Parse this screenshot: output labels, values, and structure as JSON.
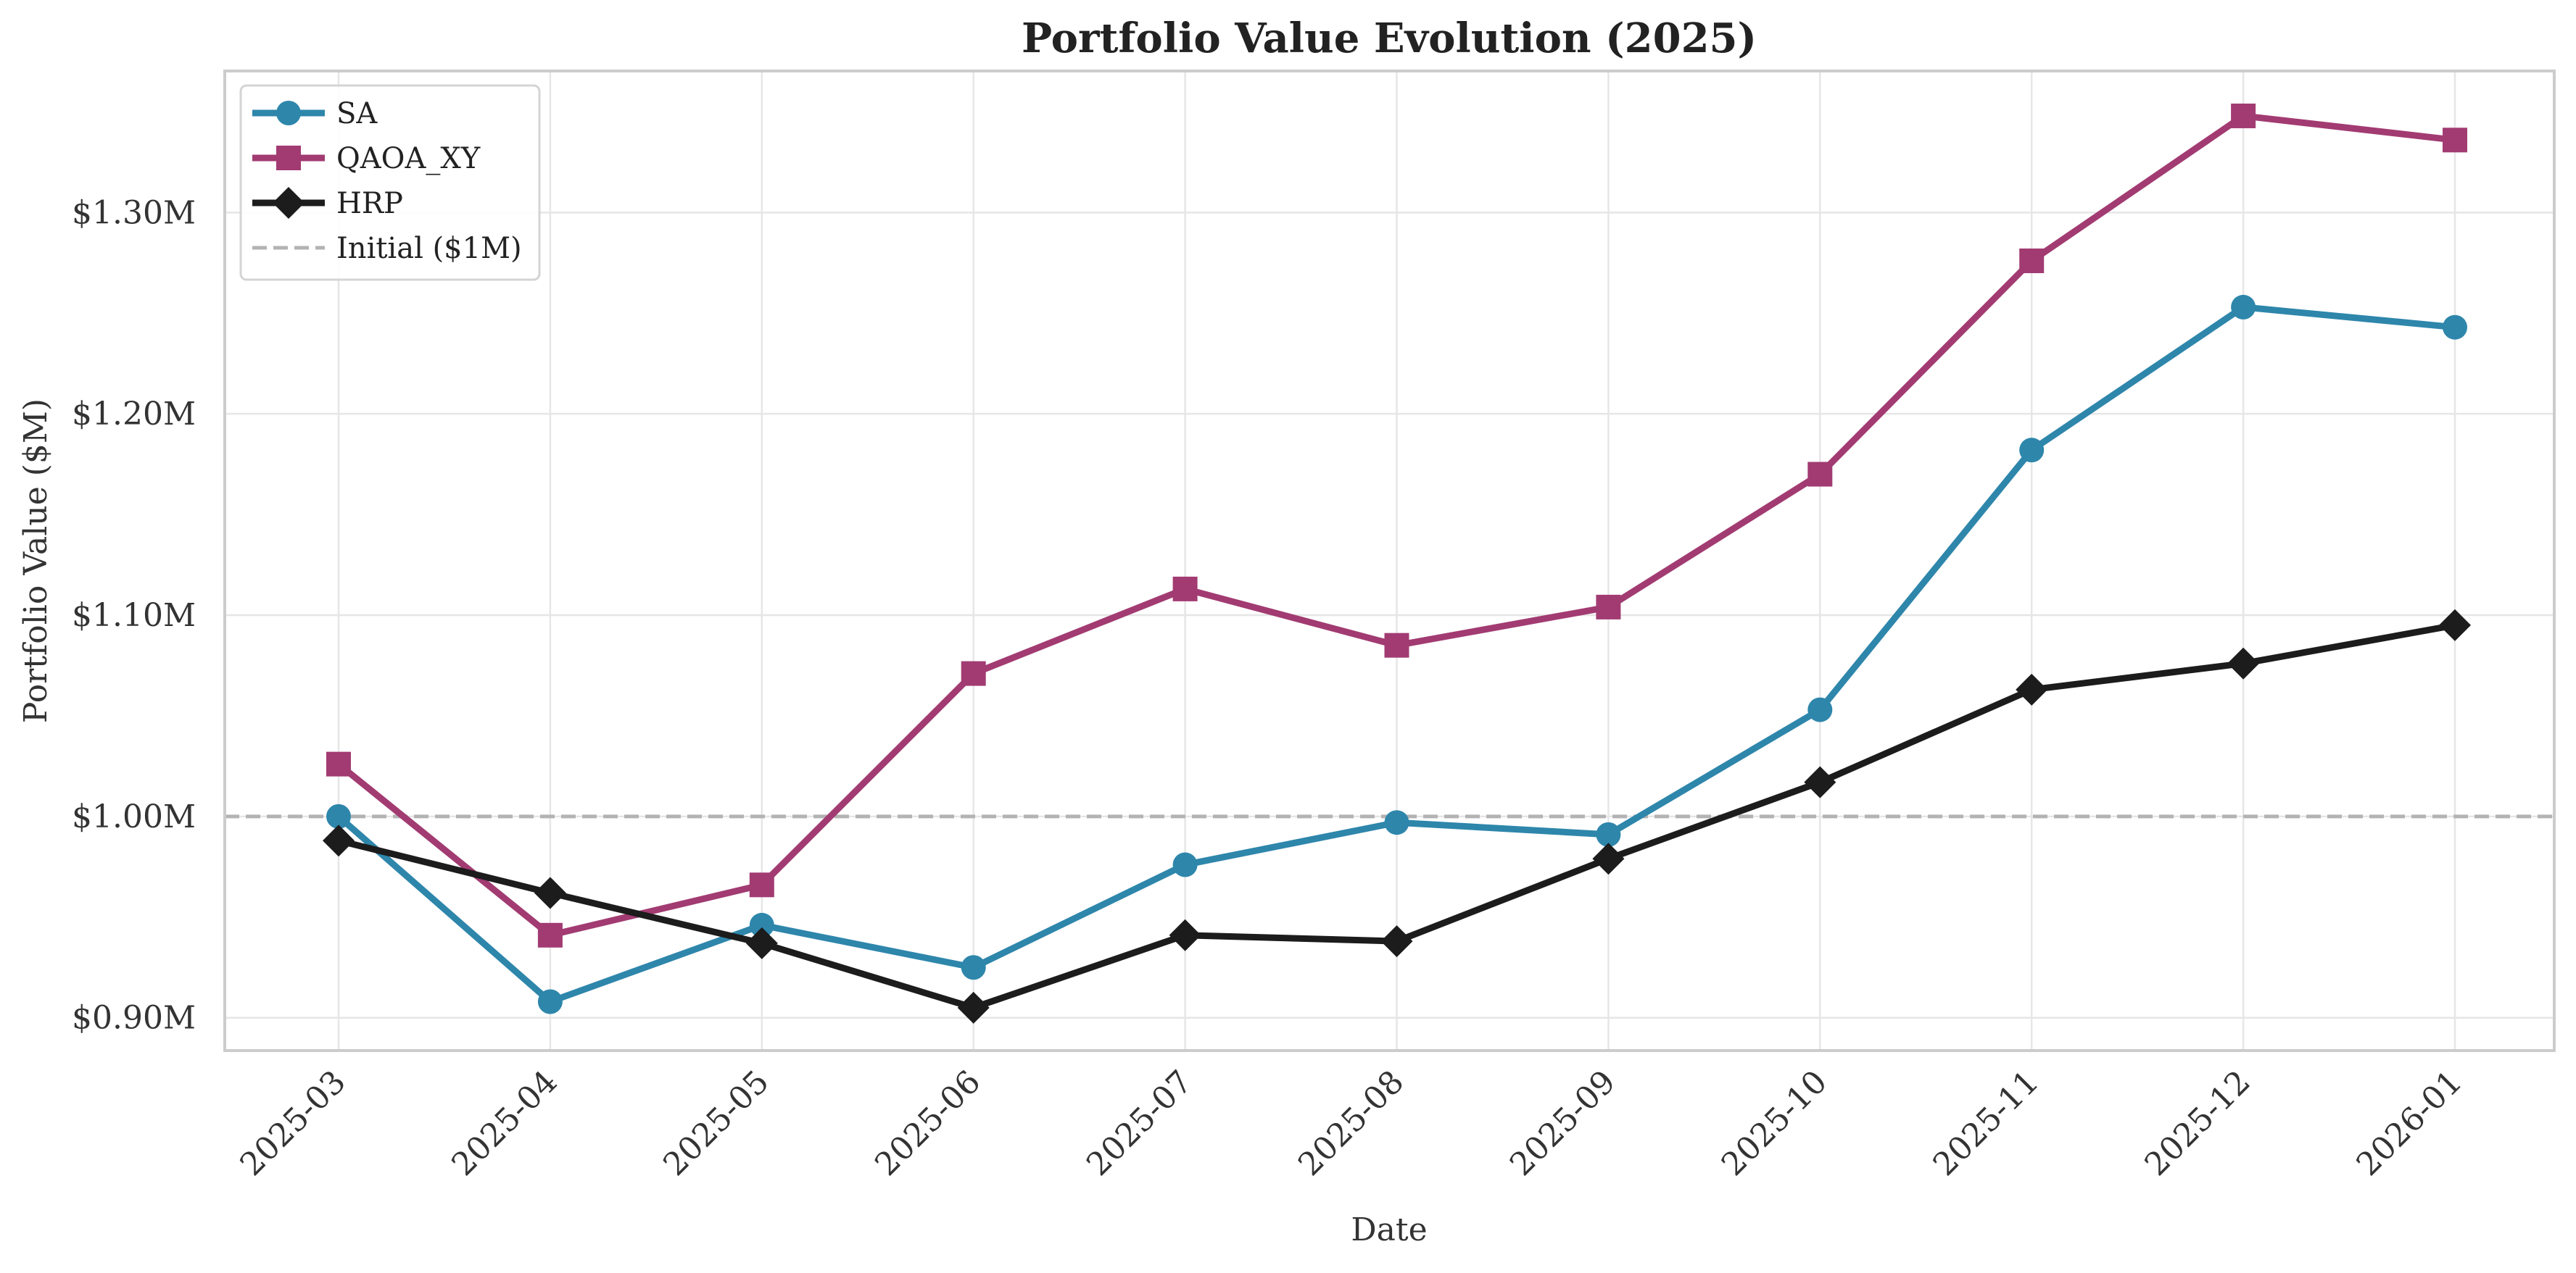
{
  "chart_data": {
    "type": "line",
    "title": "Portfolio Value Evolution (2025)",
    "xlabel": "Date",
    "ylabel": "Portfolio Value ($M)",
    "categories": [
      "2025-03",
      "2025-04",
      "2025-05",
      "2025-06",
      "2025-07",
      "2025-08",
      "2025-09",
      "2025-10",
      "2025-11",
      "2025-12",
      "2026-01"
    ],
    "ylim": [
      0.8837,
      1.3703
    ],
    "yticks": [
      0.9,
      1.0,
      1.1,
      1.2,
      1.3
    ],
    "ytick_labels": [
      "$0.90M",
      "$1.00M",
      "$1.10M",
      "$1.20M",
      "$1.30M"
    ],
    "grid": true,
    "legend_position": "upper-left",
    "series": [
      {
        "name": "SA",
        "color": "#2e86ab",
        "marker": "circle",
        "values": [
          1.0,
          0.908,
          0.946,
          0.925,
          0.976,
          0.997,
          0.991,
          1.053,
          1.182,
          1.253,
          1.243
        ]
      },
      {
        "name": "QAOA_XY",
        "color": "#a23b72",
        "marker": "square",
        "values": [
          1.026,
          0.941,
          0.966,
          1.071,
          1.113,
          1.085,
          1.104,
          1.17,
          1.276,
          1.348,
          1.336
        ]
      },
      {
        "name": "HRP",
        "color": "#1c1c1c",
        "marker": "diamond",
        "values": [
          0.988,
          0.962,
          0.937,
          0.905,
          0.941,
          0.938,
          0.979,
          1.017,
          1.063,
          1.076,
          1.095
        ]
      }
    ],
    "reference_line": {
      "label": "Initial ($1M)",
      "value": 1.0,
      "color": "#b3b3b3"
    }
  }
}
